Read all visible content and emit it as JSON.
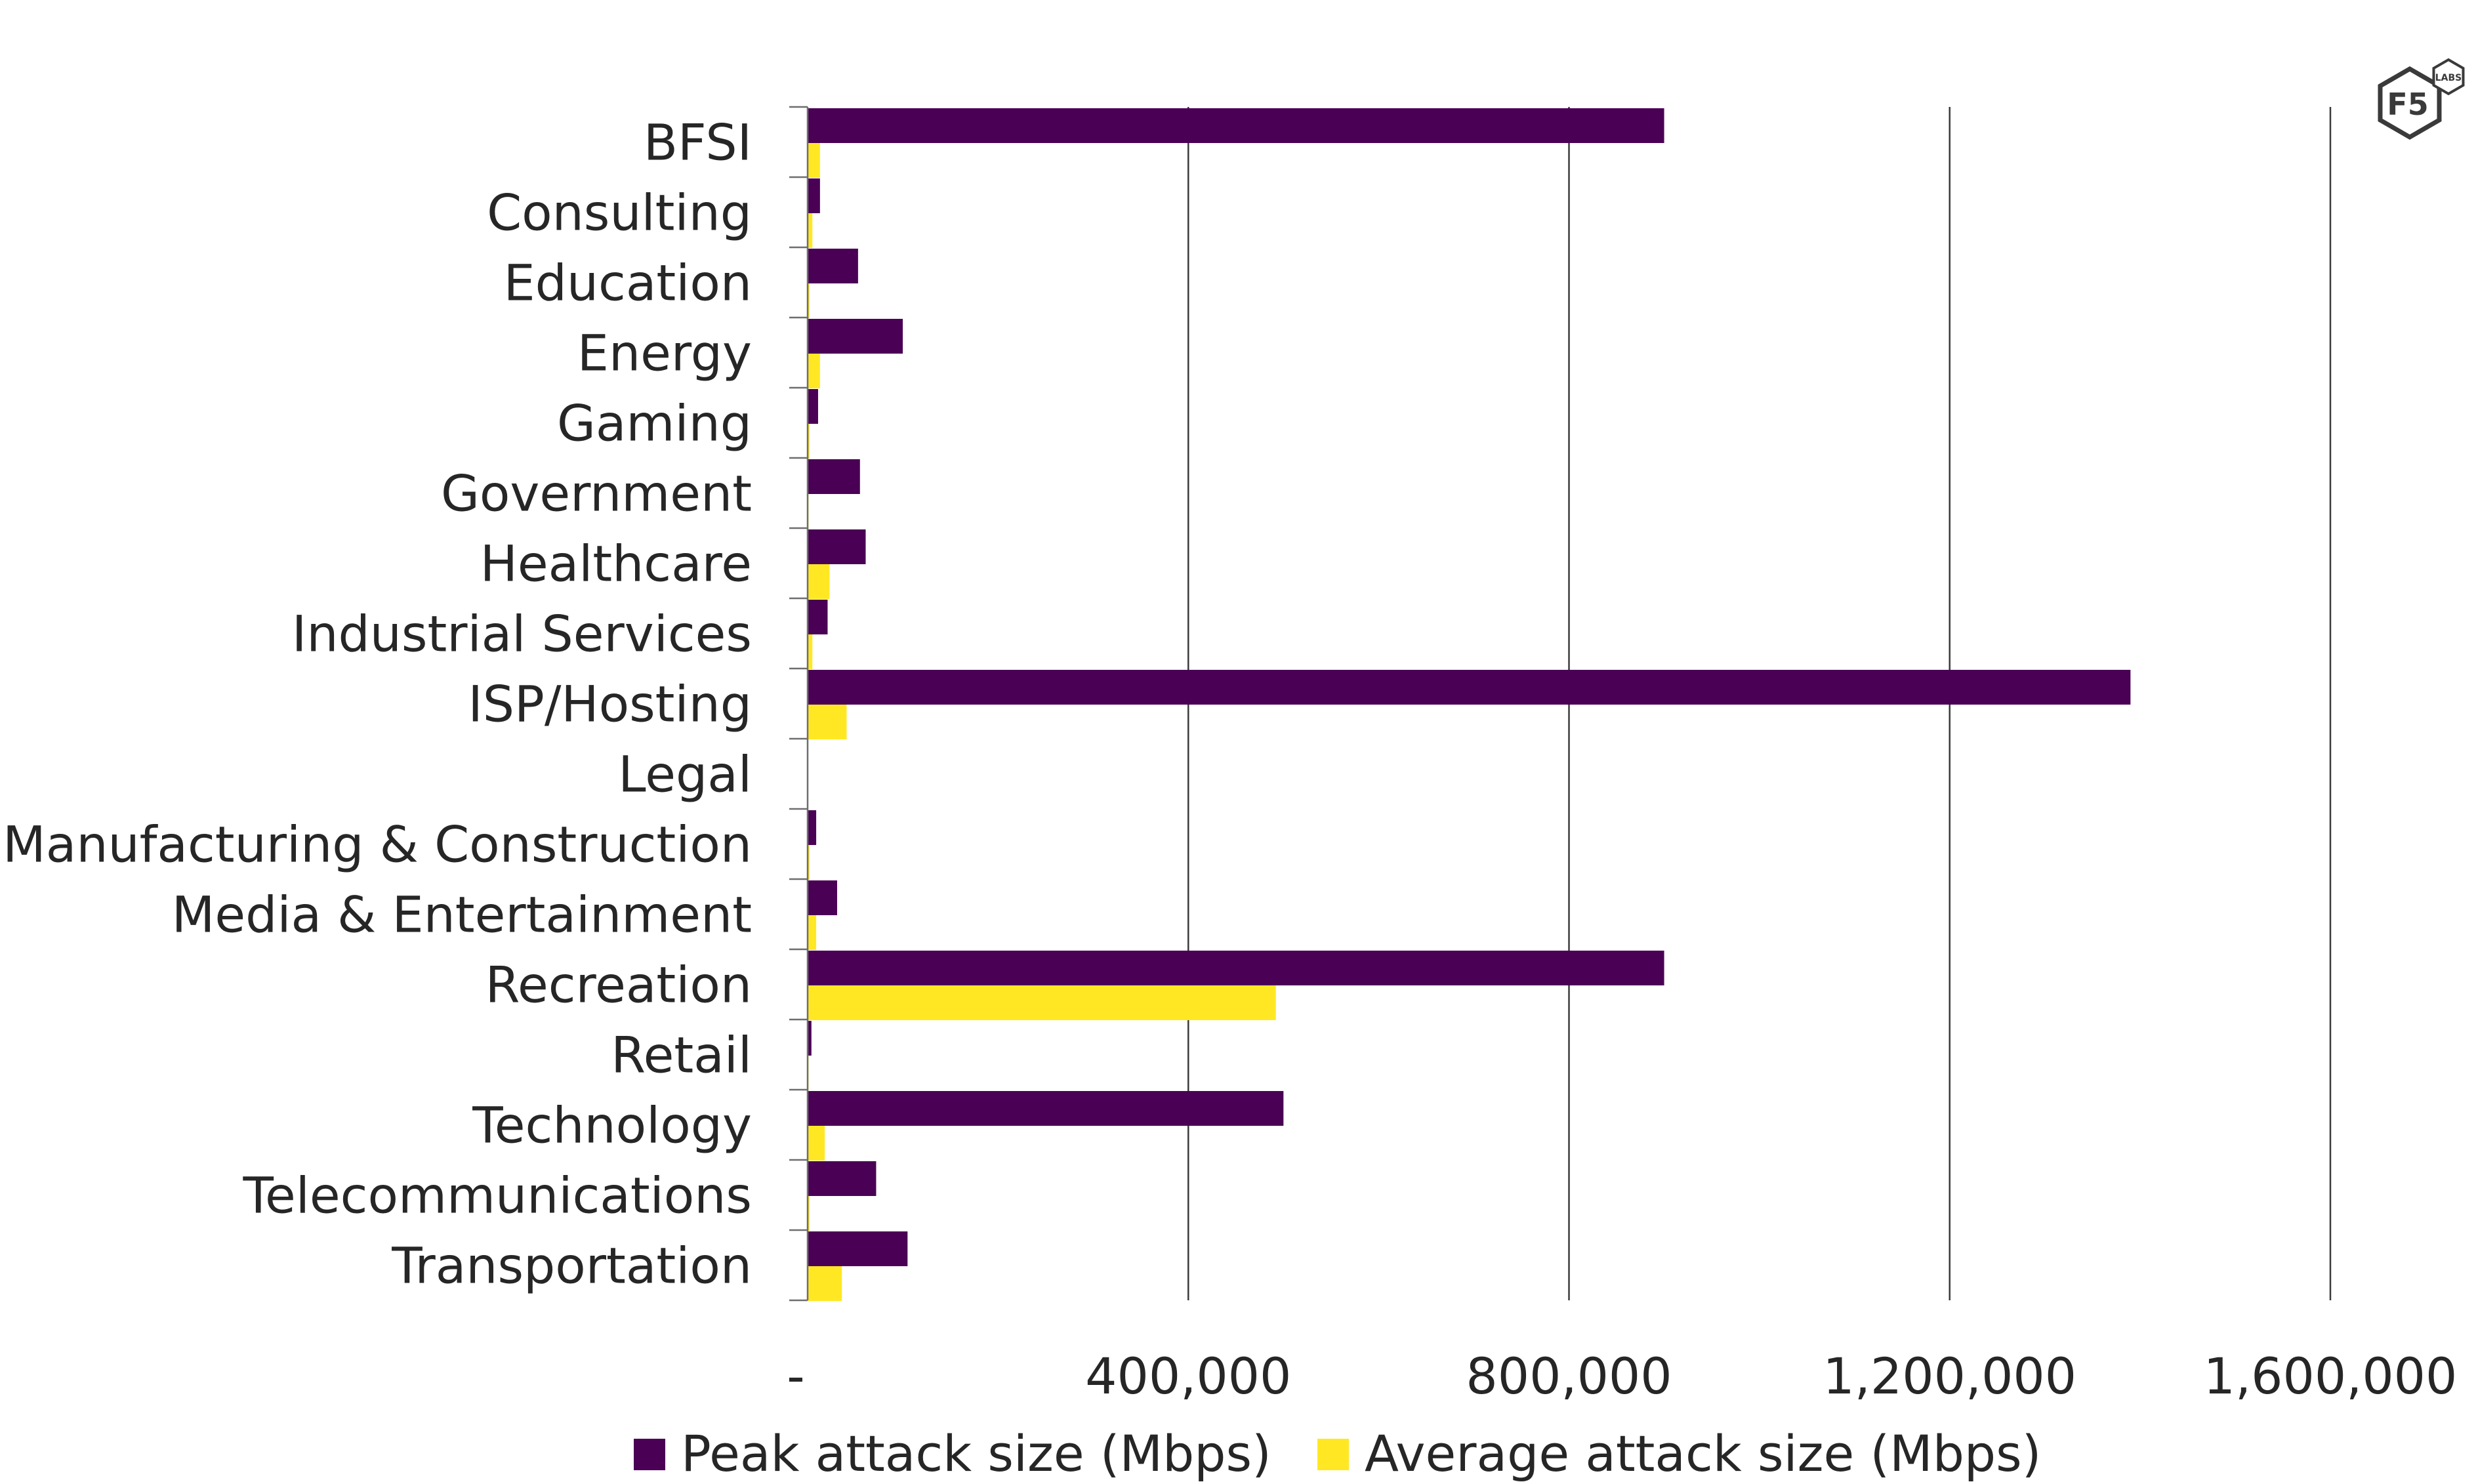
{
  "chart_data": {
    "type": "bar",
    "orientation": "horizontal",
    "title": "",
    "xlabel": "",
    "ylabel": "",
    "xlim": [
      0,
      1600000
    ],
    "grid": "vertical",
    "legend": "bottom",
    "categories": [
      "BFSI",
      "Consulting",
      "Education",
      "Energy",
      "Gaming",
      "Government",
      "Healthcare",
      "Industrial Services",
      "ISP/Hosting",
      "Legal",
      "Manufacturing & Construction",
      "Media & Entertainment",
      "Recreation",
      "Retail",
      "Technology",
      "Telecommunications",
      "Transportation"
    ],
    "ticks": [
      {
        "value": 0,
        "label": "-"
      },
      {
        "value": 400000,
        "label": "400,000"
      },
      {
        "value": 800000,
        "label": "800,000"
      },
      {
        "value": 1200000,
        "label": "1,200,000"
      },
      {
        "value": 1600000,
        "label": "1,600,000"
      }
    ],
    "series": [
      {
        "name": "Peak attack size (Mbps)",
        "color": "#4a0055",
        "values": [
          900000,
          13000,
          53000,
          100000,
          11000,
          55000,
          61000,
          21000,
          1390000,
          0,
          9000,
          31000,
          900000,
          4000,
          500000,
          72000,
          105000
        ]
      },
      {
        "name": "Average attack size (Mbps)",
        "color": "#ffe823",
        "values": [
          13000,
          5000,
          2000,
          13000,
          2000,
          1000,
          23000,
          5000,
          41000,
          0,
          2000,
          9000,
          492000,
          1000,
          18000,
          2000,
          36000
        ]
      }
    ]
  },
  "logo": {
    "brand": "F5",
    "sub": "LABS",
    "stroke_color": "#3a3a3a"
  }
}
